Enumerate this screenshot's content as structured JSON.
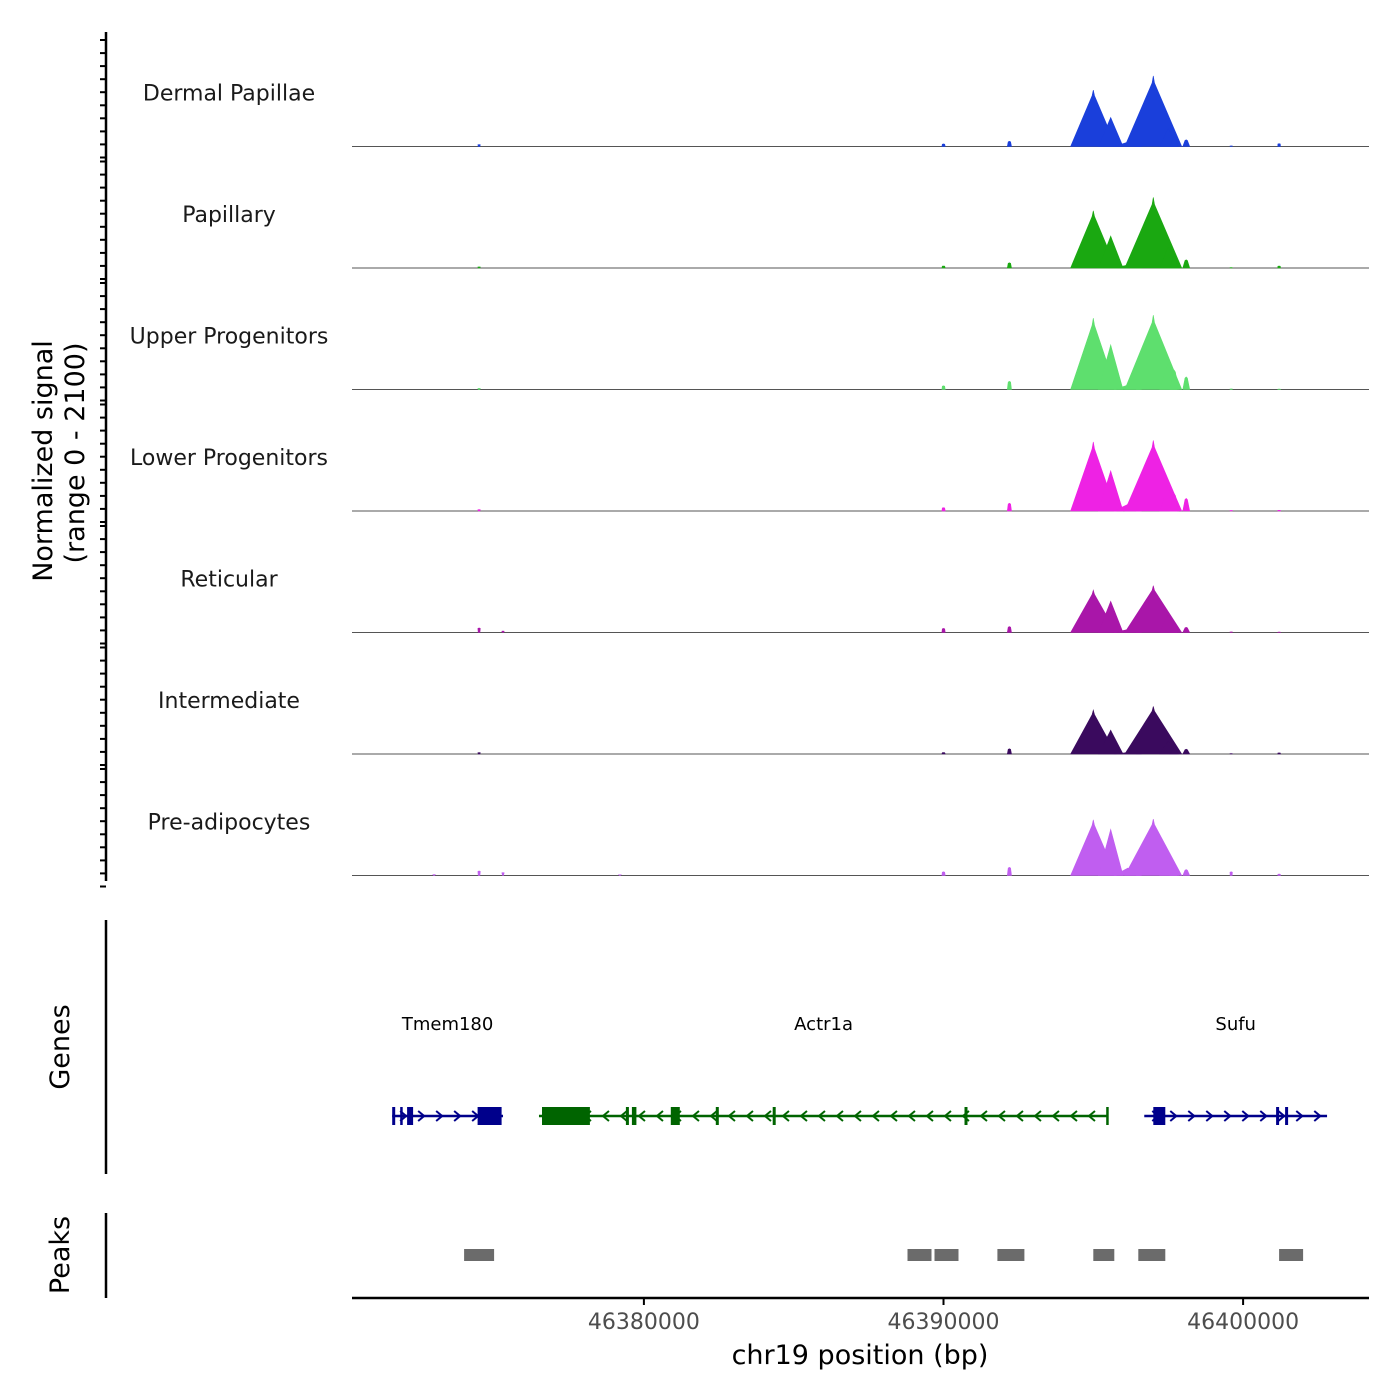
{
  "chart_data": {
    "type": "area",
    "title": "",
    "ylabel": [
      "Normalized signal",
      "(range 0 - 2100)"
    ],
    "y_range": [
      0,
      2100
    ],
    "xlabel": "chr19 position (bp)",
    "x_range": [
      46370260,
      46404200
    ],
    "x_ticks": [
      46380000,
      46390000,
      46400000
    ],
    "x_tick_labels": [
      "46380000",
      "46390000",
      "46400000"
    ],
    "track_labels": {
      "genes": "Genes",
      "peaks": "Peaks"
    },
    "peak_shape": [
      [
        46373000,
        25
      ],
      [
        46374500,
        55
      ],
      [
        46375300,
        30
      ],
      [
        46379200,
        20
      ],
      [
        46390000,
        110
      ],
      [
        46392200,
        140
      ],
      [
        46395000,
        1520
      ],
      [
        46395580,
        820
      ],
      [
        46396150,
        930
      ],
      [
        46396500,
        120
      ],
      [
        46397000,
        1900
      ],
      [
        46397500,
        560
      ],
      [
        46397700,
        280
      ],
      [
        46398100,
        230
      ],
      [
        46399600,
        70
      ],
      [
        46401200,
        90
      ]
    ],
    "series": [
      {
        "name": "Dermal Papillae",
        "color": "#1a3fdb",
        "values": [
          4,
          55,
          4,
          4,
          70,
          140,
          1520,
          780,
          120,
          100,
          1900,
          480,
          270,
          180,
          15,
          75
        ]
      },
      {
        "name": "Papillary",
        "color": "#1aa811",
        "values": [
          4,
          30,
          4,
          4,
          55,
          140,
          1540,
          860,
          80,
          60,
          1900,
          560,
          310,
          220,
          10,
          50
        ]
      },
      {
        "name": "Upper Progenitors",
        "color": "#5edf6e",
        "values": [
          4,
          30,
          4,
          4,
          100,
          220,
          1920,
          1200,
          120,
          100,
          2000,
          700,
          520,
          340,
          15,
          10
        ]
      },
      {
        "name": "Lower Progenitors",
        "color": "#ee22e4",
        "values": [
          4,
          40,
          4,
          4,
          90,
          210,
          1860,
          1080,
          180,
          80,
          1900,
          640,
          460,
          340,
          15,
          20
        ]
      },
      {
        "name": "Reticular",
        "color": "#a916a9",
        "values": [
          4,
          120,
          40,
          4,
          110,
          160,
          1140,
          840,
          80,
          60,
          1260,
          480,
          270,
          140,
          15,
          10
        ]
      },
      {
        "name": "Intermediate",
        "color": "#3a0a5e",
        "values": [
          4,
          40,
          4,
          4,
          40,
          140,
          1180,
          640,
          40,
          40,
          1280,
          340,
          140,
          130,
          10,
          30
        ]
      },
      {
        "name": "Pre-adipocytes",
        "color": "#c05ef0",
        "values": [
          25,
          120,
          80,
          20,
          100,
          220,
          1500,
          1240,
          200,
          80,
          1520,
          480,
          300,
          160,
          100,
          40
        ]
      }
    ],
    "genes": [
      {
        "name": "Tmem180",
        "color": "#00008b",
        "strand": "+",
        "start": 46371600,
        "end": 46375300,
        "exons": [
          [
            46371600,
            46371700
          ],
          [
            46371870,
            46371950
          ],
          [
            46372100,
            46372300
          ],
          [
            46374450,
            46375250
          ]
        ]
      },
      {
        "name": "Actr1a",
        "color": "#006400",
        "strand": "-",
        "start": 46376500,
        "end": 46395500,
        "exons": [
          [
            46376600,
            46378200
          ],
          [
            46379400,
            46379500
          ],
          [
            46379600,
            46379750
          ],
          [
            46380900,
            46381200
          ],
          [
            46382400,
            46382500
          ],
          [
            46384300,
            46384400
          ],
          [
            46390700,
            46390800
          ],
          [
            46395430,
            46395480
          ]
        ]
      },
      {
        "name": "Sufu",
        "color": "#00008b",
        "strand": "+",
        "start": 46396700,
        "end": 46402800,
        "exons": [
          [
            46397000,
            46397400
          ],
          [
            46401100,
            46401200
          ],
          [
            46401400,
            46401500
          ]
        ]
      }
    ],
    "peaks": [
      [
        46374000,
        46375000
      ],
      [
        46388800,
        46389600
      ],
      [
        46389700,
        46390500
      ],
      [
        46391800,
        46392700
      ],
      [
        46395000,
        46395700
      ],
      [
        46396500,
        46397400
      ],
      [
        46401200,
        46402000
      ]
    ]
  }
}
